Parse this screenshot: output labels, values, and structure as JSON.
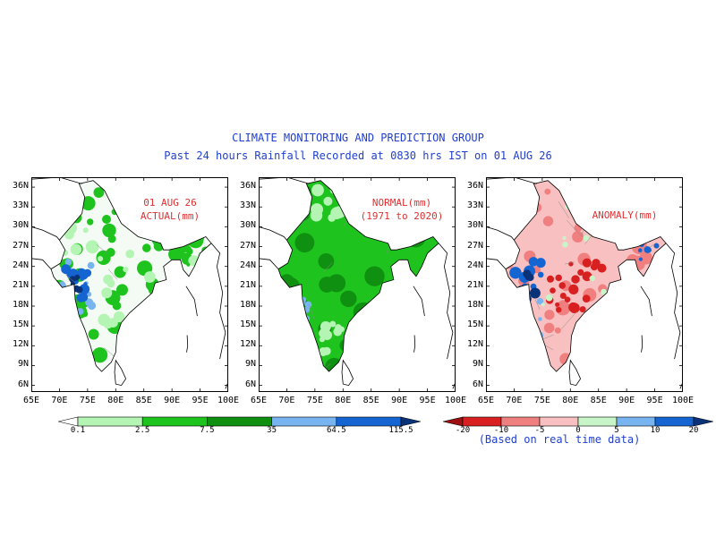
{
  "header": {
    "line1": "CLIMATE MONITORING AND PREDICTION GROUP",
    "line2": "Past 24 hours Rainfall Recorded at 0830 hrs IST on 01 AUG 26"
  },
  "axes": {
    "y_ticks": [
      "36N",
      "33N",
      "30N",
      "27N",
      "24N",
      "21N",
      "18N",
      "15N",
      "12N",
      "9N",
      "6N"
    ],
    "x_ticks": [
      "65E",
      "70E",
      "75E",
      "80E",
      "85E",
      "90E",
      "95E",
      "100E"
    ]
  },
  "panels": [
    {
      "id": "actual",
      "label_line1": "01 AUG 26",
      "label_line2": "ACTUAL(mm)",
      "map_style": "actual"
    },
    {
      "id": "normal",
      "label_line1": "NORMAL(mm)",
      "label_line2": "(1971 to 2020)",
      "map_style": "normal"
    },
    {
      "id": "anomaly",
      "label_line1": "ANOMALY(mm)",
      "label_line2": "",
      "map_style": "anomaly"
    }
  ],
  "rainfall_legend": {
    "labels": [
      "0.1",
      "2.5",
      "7.5",
      "35",
      "64.5",
      "115.5"
    ],
    "colors": [
      "#ffffff",
      "#b4f5b4",
      "#1ec31e",
      "#109010",
      "#78b4f0",
      "#1464d2",
      "#0a3278"
    ]
  },
  "anomaly_legend": {
    "labels": [
      "-20",
      "-10",
      "-5",
      "0",
      "5",
      "10",
      "20"
    ],
    "colors": [
      "#a01010",
      "#d82020",
      "#f08080",
      "#f8c0c0",
      "#c8f5c8",
      "#78b4f0",
      "#1464d2",
      "#0a3278"
    ],
    "note": "(Based on real time data)"
  }
}
